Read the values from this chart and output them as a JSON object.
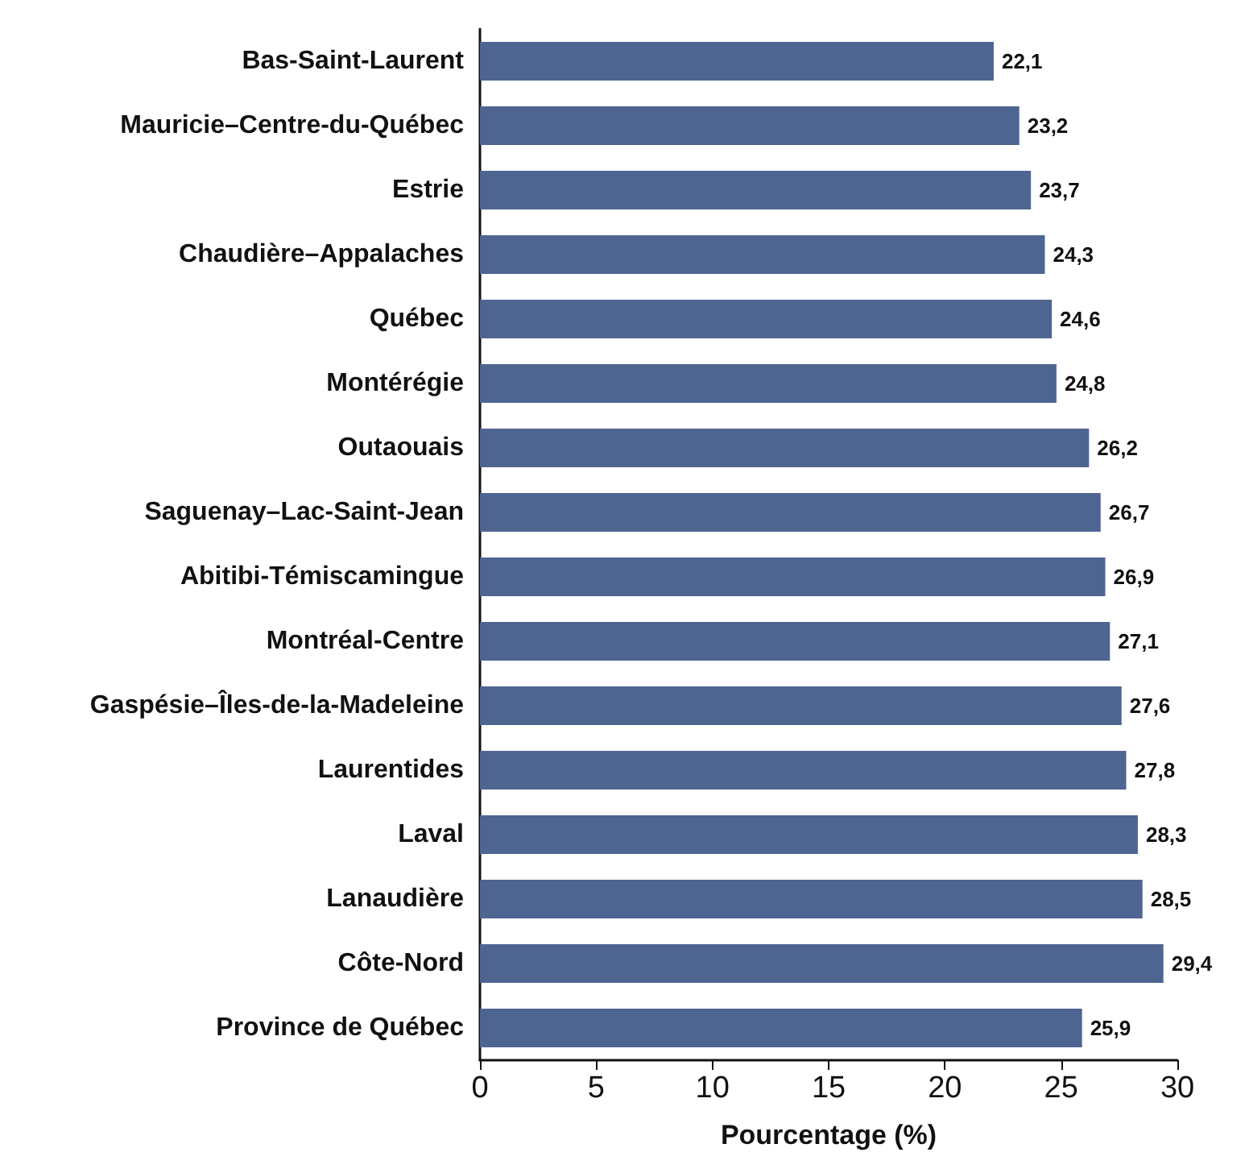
{
  "chart_data": {
    "type": "bar",
    "orientation": "horizontal",
    "xlabel": "Pourcentage (%)",
    "categories": [
      "Bas-Saint-Laurent",
      "Mauricie–Centre-du-Québec",
      "Estrie",
      "Chaudière–Appalaches",
      "Québec",
      "Montérégie",
      "Outaouais",
      "Saguenay–Lac-Saint-Jean",
      "Abitibi-Témiscamingue",
      "Montréal-Centre",
      "Gaspésie–Îles-de-la-Madeleine",
      "Laurentides",
      "Laval",
      "Lanaudière",
      "Côte-Nord",
      "Province de Québec"
    ],
    "values": [
      22.1,
      23.2,
      23.7,
      24.3,
      24.6,
      24.8,
      26.2,
      26.7,
      26.9,
      27.1,
      27.6,
      27.8,
      28.3,
      28.5,
      29.4,
      25.9
    ],
    "value_labels": [
      "22,1",
      "23,2",
      "23,7",
      "24,3",
      "24,6",
      "24,8",
      "26,2",
      "26,7",
      "26,9",
      "27,1",
      "27,6",
      "27,8",
      "28,3",
      "28,5",
      "29,4",
      "25,9"
    ],
    "color": "#4f6591",
    "xlim": [
      0,
      30
    ],
    "xticks": [
      0,
      5,
      10,
      15,
      20,
      25,
      30
    ],
    "grid": false
  }
}
